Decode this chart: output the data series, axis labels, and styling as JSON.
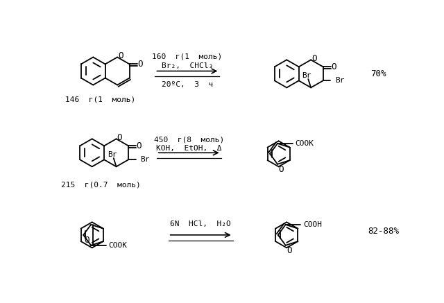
{
  "background_color": "#ffffff",
  "text_color": "#000000",
  "line_color": "#000000",
  "line_width": 1.3,
  "fig_width": 6.4,
  "fig_height": 4.37,
  "reaction1": {
    "reagent_above": "160  г(1  моль)",
    "reagent_above2": "Br₂,  CHCl₃",
    "reagent_below": "20ºC,  3  ч",
    "yield": "70%",
    "label_below": "146  г(1  моль)"
  },
  "reaction2": {
    "reagent_above": "450  г(8  моль)",
    "reagent_above2": "КОН,  EtOH,  Δ",
    "label_below": "215  г(0.7  моль)"
  },
  "reaction3": {
    "reagent_above": "6N  HCl,  H₂O",
    "yield": "82-88%"
  }
}
